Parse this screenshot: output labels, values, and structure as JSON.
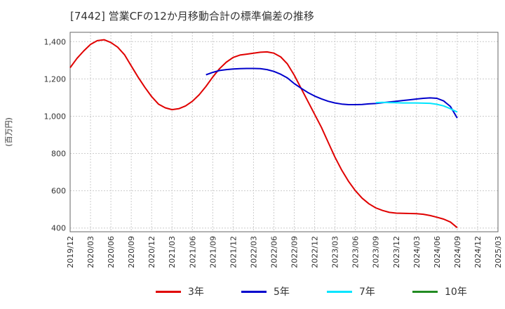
{
  "chart_data": {
    "type": "line",
    "title": "[7442]  営業CFの12か月移動合計の標準偏差の推移",
    "ylabel": "(百万円)",
    "xlabel": "",
    "ylim": [
      380,
      1450
    ],
    "yticks": [
      400,
      600,
      800,
      1000,
      1200,
      1400
    ],
    "ytick_labels": [
      "400",
      "600",
      "800",
      "1,000",
      "1,200",
      "1,400"
    ],
    "xticks": [
      "2019/12",
      "2020/03",
      "2020/06",
      "2020/09",
      "2020/12",
      "2021/03",
      "2021/06",
      "2021/09",
      "2021/12",
      "2022/03",
      "2022/06",
      "2022/09",
      "2022/12",
      "2023/03",
      "2023/06",
      "2023/09",
      "2023/12",
      "2024/03",
      "2024/06",
      "2024/09",
      "2024/12",
      "2025/03"
    ],
    "grid": "dashed",
    "legend_position": "bottom",
    "series": [
      {
        "name": "3年",
        "color": "#e00000",
        "x": [
          "2019/12",
          "2020/01",
          "2020/02",
          "2020/03",
          "2020/04",
          "2020/05",
          "2020/06",
          "2020/07",
          "2020/08",
          "2020/09",
          "2020/10",
          "2020/11",
          "2020/12",
          "2021/01",
          "2021/02",
          "2021/03",
          "2021/04",
          "2021/05",
          "2021/06",
          "2021/07",
          "2021/08",
          "2021/09",
          "2021/10",
          "2021/11",
          "2021/12",
          "2022/01",
          "2022/02",
          "2022/03",
          "2022/04",
          "2022/05",
          "2022/06",
          "2022/07",
          "2022/08",
          "2022/09",
          "2022/10",
          "2022/11",
          "2022/12",
          "2023/01",
          "2023/02",
          "2023/03",
          "2023/04",
          "2023/05",
          "2023/06",
          "2023/07",
          "2023/08",
          "2023/09",
          "2023/10",
          "2023/11",
          "2023/12",
          "2024/01",
          "2024/02",
          "2024/03",
          "2024/04",
          "2024/05",
          "2024/06",
          "2024/07",
          "2024/08",
          "2024/09"
        ],
        "values": [
          1260,
          1310,
          1350,
          1385,
          1405,
          1410,
          1395,
          1370,
          1330,
          1270,
          1210,
          1155,
          1105,
          1065,
          1045,
          1035,
          1040,
          1055,
          1080,
          1115,
          1160,
          1210,
          1255,
          1290,
          1315,
          1328,
          1333,
          1338,
          1343,
          1345,
          1338,
          1318,
          1280,
          1220,
          1150,
          1080,
          1010,
          940,
          860,
          780,
          710,
          650,
          600,
          560,
          530,
          508,
          494,
          484,
          480,
          479,
          478,
          477,
          474,
          467,
          458,
          448,
          432,
          402
        ]
      },
      {
        "name": "5年",
        "color": "#0000cc",
        "x": [
          "2021/08",
          "2021/09",
          "2021/10",
          "2021/11",
          "2021/12",
          "2022/01",
          "2022/02",
          "2022/03",
          "2022/04",
          "2022/05",
          "2022/06",
          "2022/07",
          "2022/08",
          "2022/09",
          "2022/10",
          "2022/11",
          "2022/12",
          "2023/01",
          "2023/02",
          "2023/03",
          "2023/04",
          "2023/05",
          "2023/06",
          "2023/07",
          "2023/08",
          "2023/09",
          "2023/10",
          "2023/11",
          "2023/12",
          "2024/01",
          "2024/02",
          "2024/03",
          "2024/04",
          "2024/05",
          "2024/06",
          "2024/07",
          "2024/08",
          "2024/09"
        ],
        "values": [
          1222,
          1235,
          1245,
          1250,
          1253,
          1255,
          1256,
          1256,
          1255,
          1250,
          1240,
          1225,
          1205,
          1175,
          1150,
          1127,
          1108,
          1093,
          1080,
          1071,
          1065,
          1062,
          1062,
          1063,
          1066,
          1068,
          1072,
          1076,
          1080,
          1084,
          1088,
          1092,
          1096,
          1098,
          1096,
          1082,
          1052,
          990
        ]
      },
      {
        "name": "7年",
        "color": "#00e5ff",
        "x": [
          "2023/09",
          "2023/10",
          "2023/11",
          "2023/12",
          "2024/01",
          "2024/02",
          "2024/03",
          "2024/04",
          "2024/05",
          "2024/06",
          "2024/07",
          "2024/08",
          "2024/09"
        ],
        "values": [
          1072,
          1074,
          1073,
          1072,
          1071,
          1071,
          1071,
          1070,
          1069,
          1064,
          1055,
          1040,
          1022
        ]
      },
      {
        "name": "10年",
        "color": "#228b22",
        "x": [],
        "values": []
      }
    ]
  }
}
